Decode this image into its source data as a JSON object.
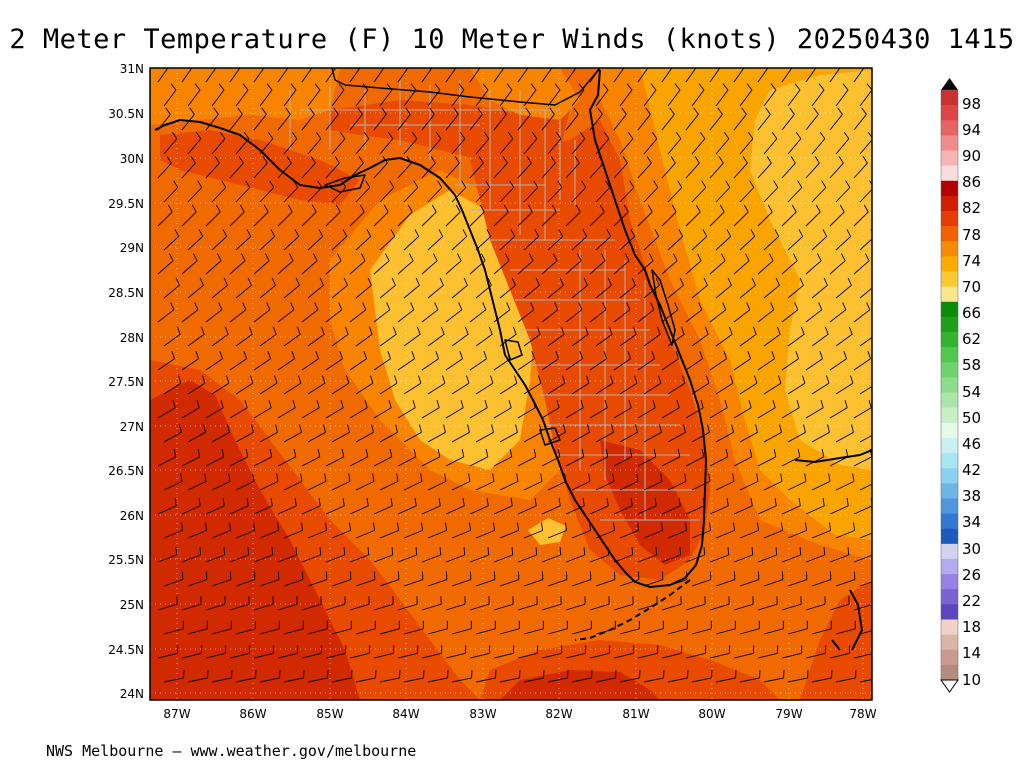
{
  "title": "2 Meter Temperature (F) 10 Meter Winds (knots) 20250430 1415",
  "footer": "NWS Melbourne — www.weather.gov/melbourne",
  "lat_labels": [
    "31N",
    "30.5N",
    "30N",
    "29.5N",
    "29N",
    "28.5N",
    "28N",
    "27.5N",
    "27N",
    "26.5N",
    "26N",
    "25.5N",
    "25N",
    "24.5N",
    "24N"
  ],
  "lon_labels": [
    "87W",
    "86W",
    "85W",
    "84W",
    "83W",
    "82W",
    "81W",
    "80W",
    "79W",
    "78W"
  ],
  "legend": {
    "labels": [
      "98",
      "94",
      "90",
      "86",
      "82",
      "78",
      "74",
      "70",
      "66",
      "62",
      "58",
      "54",
      "50",
      "46",
      "42",
      "38",
      "34",
      "30",
      "26",
      "22",
      "18",
      "14",
      "10"
    ],
    "colors": [
      "#c83232",
      "#dc4646",
      "#e66464",
      "#f08c8c",
      "#f8b4b4",
      "#fadcdc",
      "#b40000",
      "#d21e00",
      "#e63c00",
      "#f06400",
      "#f88c00",
      "#fcac00",
      "#fcc832",
      "#fce68c",
      "#0a8c0a",
      "#1ea01e",
      "#32b432",
      "#50c850",
      "#6ed26e",
      "#8cdc8c",
      "#aae6aa",
      "#c8f0c8",
      "#e6f8e6",
      "#c8f0f0",
      "#aae6f0",
      "#8cd2f0",
      "#6eb4e6",
      "#5096dc",
      "#3278d2",
      "#1e5abe",
      "#d2d2f0",
      "#b4aaf0",
      "#9682e6",
      "#7864d2",
      "#5a46be",
      "#f0d2c8",
      "#dcb4a5",
      "#c89b8c",
      "#b48c7d"
    ],
    "upper_arrow_color": "#000000",
    "lower_arrow_color": "#ffffff"
  },
  "colors": {
    "deep_red": "#d22a00",
    "red_orange": "#e84a00",
    "orange": "#f06a00",
    "dark_orange": "#f88400",
    "light_orange": "#faa400",
    "yellow_orange": "#fcc030",
    "county_line": "#b4b4b4",
    "coast": "#000000",
    "barb": "#000000"
  }
}
